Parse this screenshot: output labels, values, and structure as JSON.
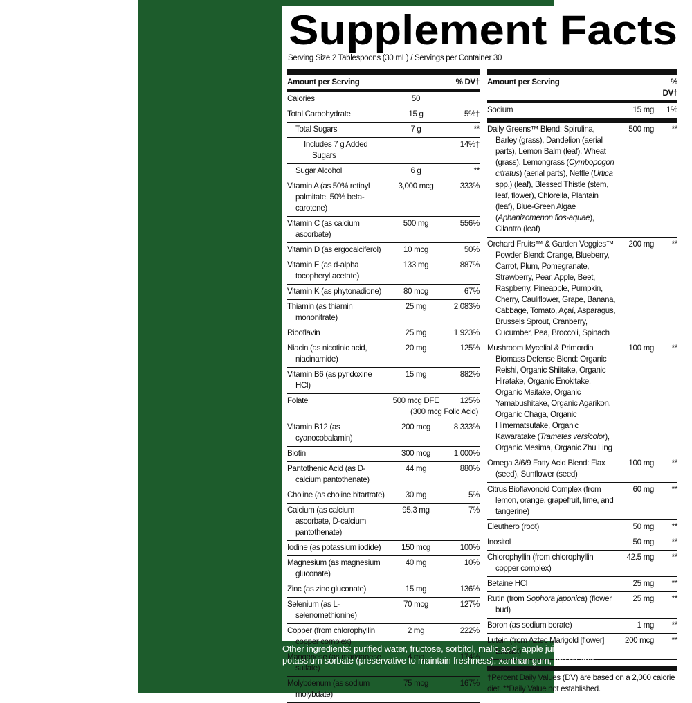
{
  "header": {
    "title": "Supplement Facts",
    "serving": "Serving Size 2 Tablespoons (30 mL) / Servings per Container 30"
  },
  "left": {
    "columns": [
      "Amount per Serving",
      "% DV†"
    ],
    "rows": [
      {
        "name": "Calories",
        "amount": "50",
        "dv": ""
      },
      {
        "name": "Total Carbohydrate",
        "amount": "15 g",
        "dv": "5%†"
      },
      {
        "name": "Total Sugars",
        "amount": "7 g",
        "dv": "**",
        "level": 1
      },
      {
        "name": "Includes 7 g Added Sugars",
        "amount": "",
        "dv": "14%†",
        "level": 2
      },
      {
        "name": "Sugar Alcohol",
        "amount": "6 g",
        "dv": "**",
        "level": 1
      },
      {
        "name": "Vitamin A (as 50% retinyl palmitate, 50% beta-carotene)",
        "amount": "3,000 mcg",
        "dv": "333%"
      },
      {
        "name": "Vitamin C (as calcium ascorbate)",
        "amount": "500 mg",
        "dv": "556%"
      },
      {
        "name": "Vitamin D (as ergocalciferol)",
        "amount": "10 mcg",
        "dv": "50%"
      },
      {
        "name": "Vitamin E (as d-alpha tocopheryl acetate)",
        "amount": "133 mg",
        "dv": "887%"
      },
      {
        "name": "Vitamin K (as phytonadione)",
        "amount": "80 mcg",
        "dv": "67%"
      },
      {
        "name": "Thiamin (as thiamin mononitrate)",
        "amount": "25 mg",
        "dv": "2,083%"
      },
      {
        "name": "Riboflavin",
        "amount": "25 mg",
        "dv": "1,923%"
      },
      {
        "name": "Niacin (as nicotinic acid, niacinamide)",
        "amount": "20 mg",
        "dv": "125%"
      },
      {
        "name": "Vitamin B6 (as pyridoxine HCl)",
        "amount": "15 mg",
        "dv": "882%"
      },
      {
        "name": "Folate",
        "amount": "500 mcg DFE",
        "dv": "125%",
        "note": "(300 mcg Folic Acid)"
      },
      {
        "name": "Vitamin B12 (as cyanocobalamin)",
        "amount": "200 mcg",
        "dv": "8,333%"
      },
      {
        "name": "Biotin",
        "amount": "300 mcg",
        "dv": "1,000%"
      },
      {
        "name": "Pantothenic Acid (as D-calcium pantothenate)",
        "amount": "44 mg",
        "dv": "880%"
      },
      {
        "name": "Choline (as choline bitartrate)",
        "amount": "30 mg",
        "dv": "5%"
      },
      {
        "name": "Calcium (as calcium ascorbate, D-calcium pantothenate)",
        "amount": "95.3 mg",
        "dv": "7%"
      },
      {
        "name": "Iodine (as potassium iodide)",
        "amount": "150 mcg",
        "dv": "100%"
      },
      {
        "name": "Magnesium (as magnesium gluconate)",
        "amount": "40 mg",
        "dv": "10%"
      },
      {
        "name": "Zinc (as zinc gluconate)",
        "amount": "15 mg",
        "dv": "136%"
      },
      {
        "name": "Selenium (as L-selenomethionine)",
        "amount": "70 mcg",
        "dv": "127%"
      },
      {
        "name": "Copper (from chlorophyllin copper complex)",
        "amount": "2 mg",
        "dv": "222%"
      },
      {
        "name": "Manganese (as manganese sulfate)",
        "amount": "4 mg",
        "dv": "174%"
      },
      {
        "name": "Molybdenum (as sodium molybdate)",
        "amount": "75 mcg",
        "dv": "167%"
      }
    ]
  },
  "right": {
    "columns": [
      "Amount per Serving",
      "% DV†"
    ],
    "top": [
      {
        "name": "Sodium",
        "amount": "15 mg",
        "dv": "1%"
      }
    ],
    "rows": [
      {
        "name": [
          "Daily Greens™ Blend: Spirulina, Barley (grass), Dandelion (aerial parts), Lemon Balm (leaf), Wheat (grass), Lemongrass (",
          "Cymbopogon citratus",
          ") (aerial parts), Nettle (",
          "Urtica",
          " spp.) (leaf), Blessed Thistle (stem, leaf, flower), Chlorella, Plantain (leaf), Blue-Green Algae (",
          "Aphanizomenon flos-aquae",
          "), Cilantro (leaf)"
        ],
        "amount": "500 mg",
        "dv": "**"
      },
      {
        "name": "Orchard Fruits™ & Garden Veggies™ Powder Blend: Orange, Blueberry, Carrot, Plum, Pomegranate, Strawberry, Pear, Apple, Beet, Raspberry, Pineapple, Pumpkin, Cherry, Cauliflower, Grape, Banana, Cabbage, Tomato, Açaí, Asparagus, Brussels Sprout, Cranberry, Cucumber, Pea, Broccoli, Spinach",
        "amount": "200 mg",
        "dv": "**"
      },
      {
        "name": [
          "Mushroom Mycelial & Primordia Biomass Defense Blend: Organic Reishi, Organic Shiitake, Organic Hiratake, Organic Enokitake, Organic Maitake, Organic Yamabushitake, Organic Agarikon, Organic Chaga, Organic Himematsutake, Organic Kawaratake (",
          "Trametes versicolor",
          "), Organic Mesima, Organic Zhu Ling"
        ],
        "amount": "100 mg",
        "dv": "**"
      },
      {
        "name": "Omega 3/6/9 Fatty Acid Blend: Flax (seed), Sunflower (seed)",
        "amount": "100 mg",
        "dv": "**"
      },
      {
        "name": "Citrus Bioflavonoid Complex (from lemon, orange, grapefruit, lime, and tangerine)",
        "amount": "60 mg",
        "dv": "**"
      },
      {
        "name": "Eleuthero (root)",
        "amount": "50 mg",
        "dv": "**"
      },
      {
        "name": "Inositol",
        "amount": "50 mg",
        "dv": "**"
      },
      {
        "name": "Chlorophyllin (from chlorophyllin copper complex)",
        "amount": "42.5 mg",
        "dv": "**"
      },
      {
        "name": "Betaine HCl",
        "amount": "25 mg",
        "dv": "**"
      },
      {
        "name": [
          "Rutin (from ",
          "Sophora japonica",
          ") (flower bud)"
        ],
        "amount": "25 mg",
        "dv": "**"
      },
      {
        "name": "Boron (as sodium borate)",
        "amount": "1 mg",
        "dv": "**"
      },
      {
        "name": "Lutein (from Aztec Marigold [flower] Extract)",
        "amount": "200 mcg",
        "dv": "**"
      }
    ],
    "footnote": "†Percent Daily Values (DV) are based on a 2,000 calorie diet. **Daily Value not established."
  },
  "other_ingredients": "Other ingredients: purified water, fructose, sorbitol, malic acid, apple juice concentrate, natural flavor, potassium sorbate (preservative to maintain freshness), xanthan gum, brown rice"
}
